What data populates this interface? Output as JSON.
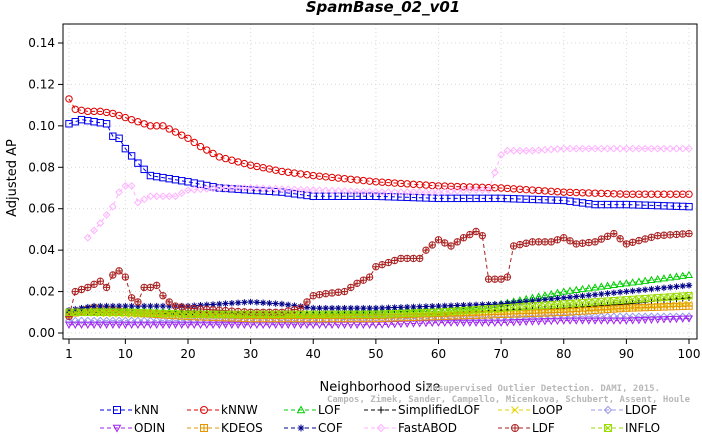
{
  "chart_data": {
    "type": "line",
    "title": "SpamBase_02_v01",
    "xlabel": "Neighborhood size",
    "ylabel": "Adjusted AP",
    "xlim": [
      1,
      100
    ],
    "ylim": [
      0,
      0.145
    ],
    "xticks": [
      1,
      10,
      20,
      30,
      40,
      50,
      60,
      70,
      80,
      90,
      100
    ],
    "yticks": [
      0.0,
      0.02,
      0.04,
      0.06,
      0.08,
      0.1,
      0.12,
      0.14
    ],
    "ytick_labels": [
      "0.00",
      "0.02",
      "0.04",
      "0.06",
      "0.08",
      "0.10",
      "0.12",
      "0.14"
    ],
    "legend_position": "bottom",
    "credit": [
      "Campos, Zimek, Sander, Campello, Micenkova, Schubert, Assent, Houle",
      "Unsupervised Outlier Detection. DAMI, 2015."
    ],
    "series": [
      {
        "name": "kNN",
        "color": "#0000ee",
        "marker": "square",
        "points": [
          [
            1,
            0.101
          ],
          [
            3,
            0.103
          ],
          [
            5,
            0.102
          ],
          [
            7,
            0.101
          ],
          [
            8,
            0.095
          ],
          [
            9,
            0.094
          ],
          [
            10,
            0.089
          ],
          [
            12,
            0.082
          ],
          [
            14,
            0.076
          ],
          [
            16,
            0.075
          ],
          [
            18,
            0.074
          ],
          [
            20,
            0.073
          ],
          [
            25,
            0.07
          ],
          [
            30,
            0.069
          ],
          [
            35,
            0.068
          ],
          [
            40,
            0.066
          ],
          [
            50,
            0.066
          ],
          [
            60,
            0.065
          ],
          [
            70,
            0.065
          ],
          [
            80,
            0.064
          ],
          [
            85,
            0.062
          ],
          [
            90,
            0.062
          ],
          [
            100,
            0.061
          ]
        ]
      },
      {
        "name": "kNNW",
        "color": "#e00000",
        "marker": "circle",
        "points": [
          [
            1,
            0.113
          ],
          [
            2,
            0.108
          ],
          [
            4,
            0.107
          ],
          [
            6,
            0.107
          ],
          [
            8,
            0.106
          ],
          [
            10,
            0.104
          ],
          [
            12,
            0.102
          ],
          [
            14,
            0.1
          ],
          [
            16,
            0.1
          ],
          [
            18,
            0.097
          ],
          [
            20,
            0.094
          ],
          [
            22,
            0.09
          ],
          [
            25,
            0.085
          ],
          [
            30,
            0.081
          ],
          [
            35,
            0.078
          ],
          [
            40,
            0.076
          ],
          [
            50,
            0.073
          ],
          [
            60,
            0.071
          ],
          [
            70,
            0.07
          ],
          [
            80,
            0.068
          ],
          [
            90,
            0.067
          ],
          [
            100,
            0.067
          ]
        ]
      },
      {
        "name": "LOF",
        "color": "#00cc00",
        "marker": "triangle",
        "points": [
          [
            1,
            0.01
          ],
          [
            5,
            0.011
          ],
          [
            10,
            0.011
          ],
          [
            20,
            0.01
          ],
          [
            30,
            0.009
          ],
          [
            40,
            0.009
          ],
          [
            50,
            0.01
          ],
          [
            60,
            0.011
          ],
          [
            65,
            0.012
          ],
          [
            70,
            0.014
          ],
          [
            75,
            0.017
          ],
          [
            80,
            0.02
          ],
          [
            85,
            0.022
          ],
          [
            90,
            0.024
          ],
          [
            95,
            0.026
          ],
          [
            100,
            0.028
          ]
        ]
      },
      {
        "name": "SimplifiedLOF",
        "color": "#000000",
        "marker": "plus",
        "points": [
          [
            1,
            0.01
          ],
          [
            10,
            0.01
          ],
          [
            20,
            0.009
          ],
          [
            30,
            0.009
          ],
          [
            40,
            0.009
          ],
          [
            50,
            0.009
          ],
          [
            60,
            0.009
          ],
          [
            70,
            0.011
          ],
          [
            80,
            0.012
          ],
          [
            90,
            0.014
          ],
          [
            100,
            0.017
          ]
        ]
      },
      {
        "name": "LoOP",
        "color": "#e6d200",
        "marker": "cross",
        "points": [
          [
            1,
            0.01
          ],
          [
            10,
            0.009
          ],
          [
            20,
            0.009
          ],
          [
            30,
            0.008
          ],
          [
            40,
            0.008
          ],
          [
            50,
            0.008
          ],
          [
            60,
            0.009
          ],
          [
            70,
            0.01
          ],
          [
            80,
            0.011
          ],
          [
            90,
            0.012
          ],
          [
            100,
            0.014
          ]
        ]
      },
      {
        "name": "LDOF",
        "color": "#9999ee",
        "marker": "diamond",
        "points": [
          [
            1,
            0.006
          ],
          [
            10,
            0.006
          ],
          [
            20,
            0.006
          ],
          [
            30,
            0.006
          ],
          [
            40,
            0.006
          ],
          [
            50,
            0.007
          ],
          [
            60,
            0.007
          ],
          [
            70,
            0.007
          ],
          [
            80,
            0.008
          ],
          [
            90,
            0.008
          ],
          [
            100,
            0.008
          ]
        ]
      },
      {
        "name": "ODIN",
        "color": "#a020f0",
        "marker": "triangle-down",
        "points": [
          [
            1,
            0.004
          ],
          [
            10,
            0.004
          ],
          [
            20,
            0.004
          ],
          [
            30,
            0.004
          ],
          [
            40,
            0.004
          ],
          [
            50,
            0.004
          ],
          [
            60,
            0.005
          ],
          [
            70,
            0.005
          ],
          [
            80,
            0.006
          ],
          [
            90,
            0.006
          ],
          [
            100,
            0.007
          ]
        ]
      },
      {
        "name": "KDEOS",
        "color": "#e69500",
        "marker": "boxplus",
        "points": [
          [
            1,
            0.009
          ],
          [
            5,
            0.012
          ],
          [
            10,
            0.01
          ],
          [
            15,
            0.009
          ],
          [
            20,
            0.008
          ],
          [
            30,
            0.007
          ],
          [
            40,
            0.007
          ],
          [
            50,
            0.007
          ],
          [
            60,
            0.008
          ],
          [
            70,
            0.009
          ],
          [
            80,
            0.01
          ],
          [
            90,
            0.012
          ],
          [
            100,
            0.013
          ]
        ]
      },
      {
        "name": "COF",
        "color": "#000088",
        "marker": "asterisk",
        "points": [
          [
            1,
            0.011
          ],
          [
            5,
            0.013
          ],
          [
            10,
            0.013
          ],
          [
            15,
            0.013
          ],
          [
            20,
            0.013
          ],
          [
            25,
            0.014
          ],
          [
            30,
            0.015
          ],
          [
            35,
            0.014
          ],
          [
            40,
            0.012
          ],
          [
            50,
            0.012
          ],
          [
            60,
            0.013
          ],
          [
            70,
            0.014
          ],
          [
            80,
            0.017
          ],
          [
            90,
            0.02
          ],
          [
            100,
            0.023
          ]
        ]
      },
      {
        "name": "FastABOD",
        "color": "#ffb3ff",
        "marker": "diamond",
        "points": [
          [
            4,
            0.046
          ],
          [
            6,
            0.053
          ],
          [
            8,
            0.061
          ],
          [
            9,
            0.068
          ],
          [
            10,
            0.071
          ],
          [
            11,
            0.071
          ],
          [
            12,
            0.063
          ],
          [
            14,
            0.066
          ],
          [
            16,
            0.066
          ],
          [
            18,
            0.066
          ],
          [
            20,
            0.069
          ],
          [
            25,
            0.07
          ],
          [
            30,
            0.07
          ],
          [
            40,
            0.069
          ],
          [
            50,
            0.068
          ],
          [
            60,
            0.068
          ],
          [
            65,
            0.069
          ],
          [
            68,
            0.069
          ],
          [
            70,
            0.086
          ],
          [
            71,
            0.088
          ],
          [
            75,
            0.088
          ],
          [
            80,
            0.089
          ],
          [
            90,
            0.089
          ],
          [
            100,
            0.089
          ]
        ]
      },
      {
        "name": "LDF",
        "color": "#aa2222",
        "marker": "circleplus",
        "points": [
          [
            1,
            0.008
          ],
          [
            2,
            0.02
          ],
          [
            4,
            0.022
          ],
          [
            6,
            0.025
          ],
          [
            7,
            0.022
          ],
          [
            8,
            0.028
          ],
          [
            9,
            0.03
          ],
          [
            10,
            0.027
          ],
          [
            11,
            0.017
          ],
          [
            12,
            0.015
          ],
          [
            13,
            0.022
          ],
          [
            14,
            0.022
          ],
          [
            15,
            0.023
          ],
          [
            16,
            0.018
          ],
          [
            17,
            0.015
          ],
          [
            18,
            0.013
          ],
          [
            20,
            0.012
          ],
          [
            25,
            0.011
          ],
          [
            30,
            0.01
          ],
          [
            35,
            0.01
          ],
          [
            38,
            0.012
          ],
          [
            40,
            0.018
          ],
          [
            42,
            0.019
          ],
          [
            45,
            0.02
          ],
          [
            47,
            0.024
          ],
          [
            49,
            0.027
          ],
          [
            50,
            0.032
          ],
          [
            52,
            0.034
          ],
          [
            54,
            0.036
          ],
          [
            57,
            0.036
          ],
          [
            58,
            0.04
          ],
          [
            60,
            0.045
          ],
          [
            62,
            0.042
          ],
          [
            64,
            0.046
          ],
          [
            66,
            0.049
          ],
          [
            67,
            0.047
          ],
          [
            68,
            0.026
          ],
          [
            70,
            0.026
          ],
          [
            71,
            0.027
          ],
          [
            72,
            0.042
          ],
          [
            75,
            0.044
          ],
          [
            78,
            0.044
          ],
          [
            80,
            0.046
          ],
          [
            82,
            0.043
          ],
          [
            85,
            0.044
          ],
          [
            88,
            0.048
          ],
          [
            90,
            0.043
          ],
          [
            95,
            0.047
          ],
          [
            100,
            0.048
          ]
        ]
      },
      {
        "name": "INFLO",
        "color": "#99dd00",
        "marker": "boxcross",
        "points": [
          [
            1,
            0.01
          ],
          [
            10,
            0.01
          ],
          [
            20,
            0.009
          ],
          [
            30,
            0.009
          ],
          [
            40,
            0.009
          ],
          [
            50,
            0.009
          ],
          [
            60,
            0.01
          ],
          [
            70,
            0.012
          ],
          [
            80,
            0.014
          ],
          [
            90,
            0.016
          ],
          [
            100,
            0.018
          ]
        ]
      }
    ]
  }
}
